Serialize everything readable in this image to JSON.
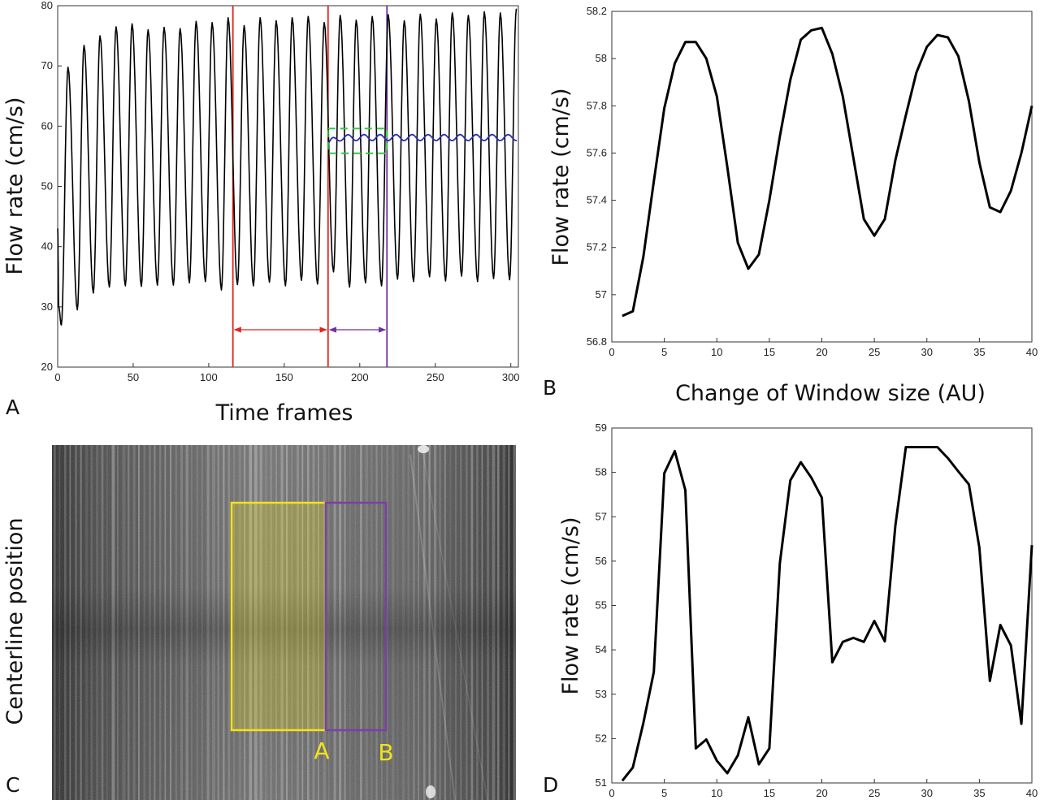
{
  "panels": {
    "A": {
      "letter": "A",
      "xlabel": "Time frames",
      "ylabel": "Flow rate (cm/s)"
    },
    "B": {
      "letter": "B",
      "xlabel": "Change of Window size (AU)",
      "ylabel": "Flow rate (cm/s)"
    },
    "C": {
      "letter": "C",
      "ylabel": "Centerline position",
      "box_a_label": "A",
      "box_b_label": "B"
    },
    "D": {
      "letter": "D",
      "ylabel": "Flow rate (cm/s)"
    }
  },
  "colors": {
    "line": "#000000",
    "marker_red": "#e0241b",
    "marker_purple": "#7030a0",
    "smoothed": "#2b2bb5",
    "dashed_box": "#2ecc40",
    "yellow": "#f2e21b",
    "box_purple": "#7a3fa8"
  },
  "chart_data": [
    {
      "panel": "A",
      "type": "line",
      "xlabel": "Time frames",
      "ylabel": "Flow rate (cm/s)",
      "xlim": [
        0,
        305
      ],
      "ylim": [
        20,
        80
      ],
      "xticks": [
        0,
        50,
        100,
        150,
        200,
        250,
        300
      ],
      "yticks": [
        20,
        30,
        40,
        50,
        60,
        70,
        80
      ],
      "period_frames": 10.6,
      "peaks": [
        30,
        69.8,
        73.4,
        75.0,
        76.5,
        77.0,
        76.0,
        76.4,
        76.2,
        77.4,
        77.2,
        78.0,
        76.7,
        78.0,
        77.5,
        78.0,
        78.2,
        77.2,
        78.4,
        77.6,
        78.2,
        78.5,
        77.5,
        78.6,
        77.8,
        78.8,
        78.4,
        79.0,
        78.8,
        79.5
      ],
      "troughs": [
        27.0,
        29.5,
        32.3,
        33.3,
        33.5,
        33.4,
        33.6,
        33.6,
        34.0,
        34.2,
        32.8,
        33.7,
        33.5,
        34.1,
        33.5,
        34.4,
        33.8,
        35.8,
        33.3,
        34.0,
        33.5,
        34.6,
        34.2,
        35.0,
        34.3,
        35.1,
        34.2,
        34.7,
        34.5
      ],
      "markers": [
        {
          "frame": 116,
          "color": "red"
        },
        {
          "frame": 179,
          "color": "red"
        },
        {
          "frame": 218,
          "color": "purple"
        }
      ],
      "arrows": [
        {
          "from": 116,
          "to": 179,
          "y": 26.2,
          "color": "red"
        },
        {
          "from": 179,
          "to": 218,
          "y": 26.2,
          "color": "purple"
        }
      ],
      "smoothed_series": {
        "x_start": 179,
        "x_end": 304,
        "start": 57.0,
        "level": 58.1,
        "amplitude": 0.5
      },
      "dashed_box": {
        "x0": 179,
        "x1": 218,
        "y0": 55.5,
        "y1": 59.6
      }
    },
    {
      "panel": "B",
      "type": "line",
      "xlabel": "Change of Window size (AU)",
      "ylabel": "Flow rate (cm/s)",
      "xlim": [
        0,
        40
      ],
      "ylim": [
        56.8,
        58.2
      ],
      "xticks": [
        0,
        5,
        10,
        15,
        20,
        25,
        30,
        35,
        40
      ],
      "yticks": [
        56.8,
        57,
        57.2,
        57.4,
        57.6,
        57.8,
        58,
        58.2
      ],
      "x": [
        1,
        2,
        3,
        4,
        5,
        6,
        7,
        8,
        9,
        10,
        11,
        12,
        13,
        14,
        15,
        16,
        17,
        18,
        19,
        20,
        21,
        22,
        23,
        24,
        25,
        26,
        27,
        28,
        29,
        30,
        31,
        32,
        33,
        34,
        35,
        36,
        37,
        38,
        39,
        40
      ],
      "values": [
        56.91,
        56.93,
        57.16,
        57.48,
        57.79,
        57.98,
        58.07,
        58.07,
        58.0,
        57.84,
        57.54,
        57.22,
        57.11,
        57.17,
        57.4,
        57.67,
        57.91,
        58.08,
        58.12,
        58.13,
        58.02,
        57.84,
        57.58,
        57.32,
        57.25,
        57.32,
        57.57,
        57.76,
        57.94,
        58.05,
        58.1,
        58.09,
        58.01,
        57.82,
        57.56,
        57.37,
        57.35,
        57.44,
        57.6,
        57.8
      ]
    },
    {
      "panel": "D",
      "type": "line",
      "xlabel": "",
      "ylabel": "Flow rate (cm/s)",
      "xlim": [
        0,
        40
      ],
      "ylim": [
        51,
        59
      ],
      "xticks": [
        0,
        5,
        10,
        15,
        20,
        25,
        30,
        35,
        40
      ],
      "yticks": [
        51,
        52,
        53,
        54,
        55,
        56,
        57,
        58,
        59
      ],
      "x": [
        1,
        2,
        3,
        4,
        5,
        6,
        7,
        8,
        9,
        10,
        11,
        12,
        13,
        14,
        15,
        16,
        17,
        18,
        19,
        20,
        21,
        22,
        23,
        24,
        25,
        26,
        27,
        28,
        29,
        30,
        31,
        32,
        33,
        34,
        35,
        36,
        37,
        38,
        39,
        40
      ],
      "values": [
        51.05,
        51.35,
        52.35,
        53.5,
        57.98,
        58.48,
        57.6,
        51.78,
        51.98,
        51.5,
        51.22,
        51.62,
        52.48,
        51.42,
        51.78,
        55.95,
        57.82,
        58.23,
        57.88,
        57.43,
        53.72,
        54.18,
        54.27,
        54.18,
        54.65,
        54.19,
        56.8,
        58.57,
        58.57,
        58.57,
        58.57,
        58.32,
        58.02,
        57.73,
        56.3,
        53.3,
        54.56,
        54.1,
        52.33,
        56.36
      ]
    }
  ]
}
